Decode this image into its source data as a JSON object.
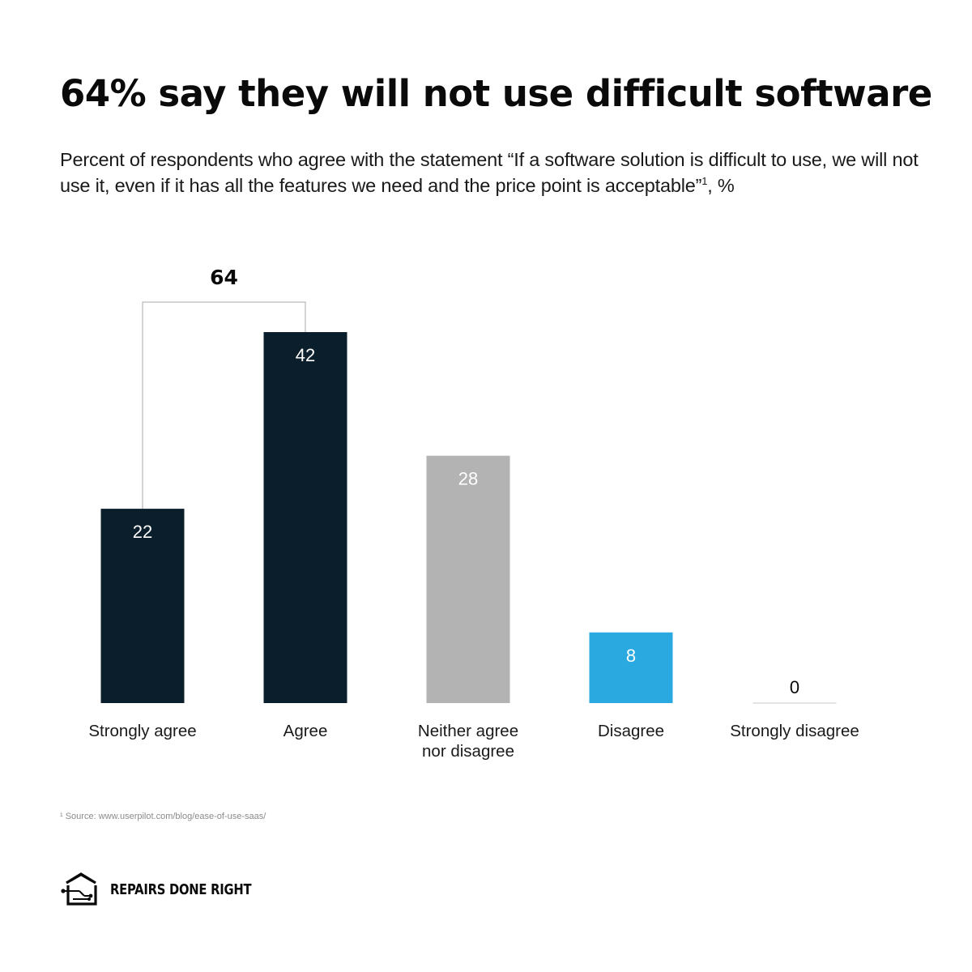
{
  "header": {
    "title": "64% say they will not use difficult software",
    "subtitle_main": "Percent of respondents who agree with the statement “If a software solution is difficult to use, we will not use it, even if it has all the features we need and the price point is acceptable”",
    "subtitle_sup": "1",
    "subtitle_tail": ", %"
  },
  "chart_data": {
    "type": "bar",
    "title": "64% say they will not use difficult software",
    "categories": [
      "Strongly agree",
      "Agree",
      "Neither agree nor disagree",
      "Disagree",
      "Strongly disagree"
    ],
    "category_lines": [
      [
        "Strongly agree"
      ],
      [
        "Agree"
      ],
      [
        "Neither agree",
        "nor disagree"
      ],
      [
        "Disagree"
      ],
      [
        "Strongly disagree"
      ]
    ],
    "values": [
      22,
      42,
      28,
      8,
      0
    ],
    "colors": [
      "#0b1e2b",
      "#0b1e2b",
      "#b3b3b3",
      "#2aa8e0",
      "#c8c8c8"
    ],
    "bracket": {
      "label": "64",
      "from": 0,
      "to": 1
    },
    "ylim": [
      0,
      42
    ],
    "grid": false,
    "legend": "none"
  },
  "footnote": "¹ Source: www.userpilot.com/blog/ease-of-use-saas/",
  "brand": {
    "name": "REPAIRS DONE RIGHT",
    "logo_icon": "house-circuit-icon"
  }
}
